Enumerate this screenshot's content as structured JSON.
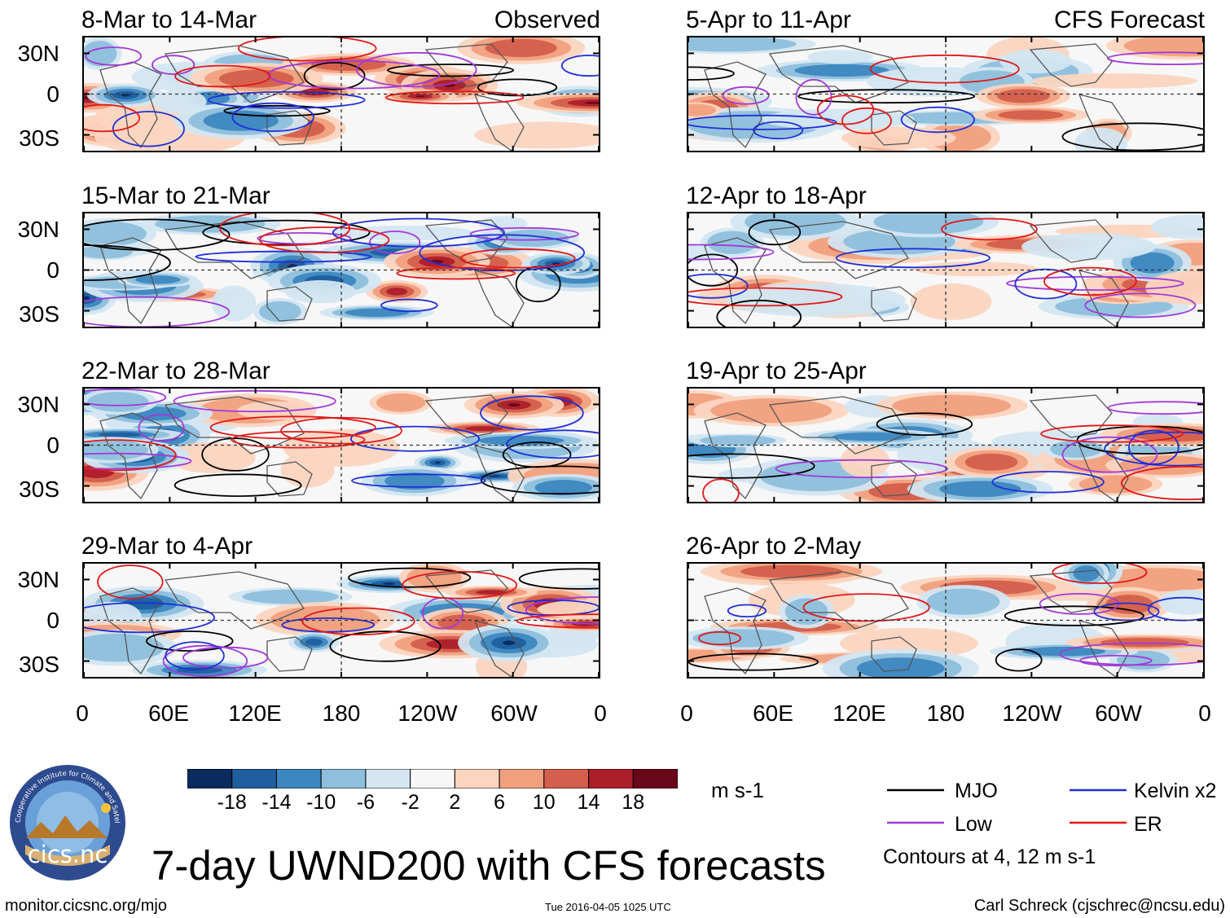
{
  "panels": [
    {
      "title": "8-Mar to 14-Mar",
      "source_label": "Observed",
      "kind": "obs"
    },
    {
      "title": "15-Mar to 21-Mar",
      "source_label": "",
      "kind": "obs"
    },
    {
      "title": "22-Mar to 28-Mar",
      "source_label": "",
      "kind": "obs"
    },
    {
      "title": "29-Mar to 4-Apr",
      "source_label": "",
      "kind": "obs"
    },
    {
      "title": "5-Apr to 11-Apr",
      "source_label": "CFS Forecast",
      "kind": "fcst"
    },
    {
      "title": "12-Apr to 18-Apr",
      "source_label": "",
      "kind": "fcst"
    },
    {
      "title": "19-Apr to 25-Apr",
      "source_label": "",
      "kind": "fcst"
    },
    {
      "title": "26-Apr to 2-May",
      "source_label": "",
      "kind": "fcst"
    }
  ],
  "lat_labels": [
    "30N",
    "0",
    "30S"
  ],
  "lon_labels": [
    "0",
    "60E",
    "120E",
    "180",
    "120W",
    "60W",
    "0"
  ],
  "colorbar": {
    "labels": [
      "-18",
      "-14",
      "-10",
      "-6",
      "-2",
      "2",
      "6",
      "10",
      "14",
      "18"
    ],
    "colors": [
      "#0b2a5e",
      "#1f5fa0",
      "#3d87c0",
      "#8ebfdc",
      "#d3e6f1",
      "#f7f7f7",
      "#fbd5c0",
      "#f1a07e",
      "#d35f4c",
      "#ad1e2b",
      "#680818"
    ],
    "units": "m s-1"
  },
  "legend": {
    "entries": [
      {
        "label": "MJO",
        "color": "#000000"
      },
      {
        "label": "Kelvin x2",
        "color": "#1f2fd6"
      },
      {
        "label": "Low",
        "color": "#a03ad8"
      },
      {
        "label": "ER",
        "color": "#e01818"
      }
    ],
    "note": "Contours at 4, 12 m s-1"
  },
  "logo": {
    "text": "cics.nc",
    "ring_text": "Cooperative Institute for Climate and Satellites"
  },
  "main_title": "7-day UWND200 with CFS forecasts",
  "footer": {
    "left": "monitor.cicsnc.org/mjo",
    "center": "Tue 2016-04-05 1025 UTC",
    "right": "Carl Schreck (cjschrec@ncsu.edu)"
  }
}
